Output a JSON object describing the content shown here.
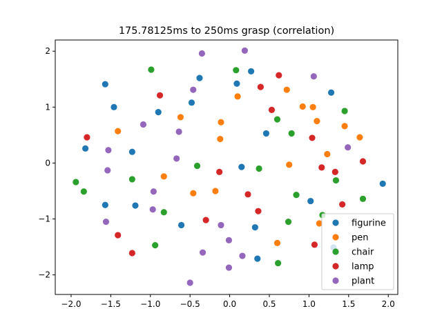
{
  "chart_data": {
    "type": "scatter",
    "title": "175.78125ms to 250ms grasp (correlation)",
    "xlabel": "",
    "ylabel": "",
    "xlim": [
      -2.2,
      2.12
    ],
    "ylim": [
      -2.35,
      2.2
    ],
    "xticks": [
      -2.0,
      -1.5,
      -1.0,
      -0.5,
      0.0,
      0.5,
      1.0,
      1.5,
      2.0
    ],
    "xtick_labels": [
      "−2.0",
      "−1.5",
      "−1.0",
      "−0.5",
      "0.0",
      "0.5",
      "1.0",
      "1.5",
      "2.0"
    ],
    "yticks": [
      -2,
      -1,
      0,
      1,
      2
    ],
    "ytick_labels": [
      "−2",
      "−1",
      "0",
      "1",
      "2"
    ],
    "grid": false,
    "legend_position": "bottom-right",
    "series": [
      {
        "name": "figurine",
        "color": "#1f77b4",
        "points": [
          [
            -1.57,
            1.41
          ],
          [
            -1.46,
            1.0
          ],
          [
            -0.38,
            1.52
          ],
          [
            0.27,
            1.64
          ],
          [
            0.09,
            1.42
          ],
          [
            1.28,
            1.26
          ],
          [
            -0.48,
            1.08
          ],
          [
            -0.9,
            0.91
          ],
          [
            0.46,
            0.53
          ],
          [
            -1.82,
            0.26
          ],
          [
            -1.23,
            0.2
          ],
          [
            0.15,
            -0.07
          ],
          [
            1.93,
            -0.37
          ],
          [
            -1.57,
            -0.75
          ],
          [
            -1.19,
            -0.76
          ],
          [
            1.02,
            -0.68
          ],
          [
            -0.61,
            -1.11
          ],
          [
            0.32,
            -1.15
          ],
          [
            1.31,
            -1.51
          ],
          [
            0.35,
            -1.71
          ]
        ]
      },
      {
        "name": "pen",
        "color": "#ff7f0e",
        "points": [
          [
            0.72,
            1.31
          ],
          [
            0.1,
            1.19
          ],
          [
            0.92,
            1.01
          ],
          [
            1.05,
            1.0
          ],
          [
            -0.62,
            0.82
          ],
          [
            -0.11,
            0.73
          ],
          [
            1.1,
            0.75
          ],
          [
            1.45,
            0.66
          ],
          [
            -1.41,
            0.57
          ],
          [
            1.64,
            0.46
          ],
          [
            -0.12,
            0.43
          ],
          [
            1.23,
            0.16
          ],
          [
            0.75,
            -0.03
          ],
          [
            -0.83,
            -0.24
          ],
          [
            -0.18,
            -0.5
          ],
          [
            -0.46,
            -0.54
          ],
          [
            1.13,
            -1.08
          ],
          [
            0.6,
            -1.43
          ]
        ]
      },
      {
        "name": "chair",
        "color": "#2ca02c",
        "points": [
          [
            -0.99,
            1.67
          ],
          [
            0.08,
            1.66
          ],
          [
            1.45,
            0.93
          ],
          [
            0.6,
            0.78
          ],
          [
            0.78,
            0.53
          ],
          [
            -0.41,
            -0.05
          ],
          [
            0.37,
            -0.1
          ],
          [
            -1.94,
            -0.34
          ],
          [
            -1.23,
            -0.29
          ],
          [
            1.34,
            -0.31
          ],
          [
            -1.84,
            -0.51
          ],
          [
            0.84,
            -0.57
          ],
          [
            1.68,
            -0.64
          ],
          [
            -0.83,
            -0.88
          ],
          [
            1.17,
            -0.93
          ],
          [
            0.74,
            -1.05
          ],
          [
            -0.94,
            -1.47
          ],
          [
            0.61,
            -1.79
          ]
        ]
      },
      {
        "name": "lamp",
        "color": "#d62728",
        "points": [
          [
            0.62,
            1.57
          ],
          [
            0.39,
            1.36
          ],
          [
            -0.88,
            1.21
          ],
          [
            0.53,
            0.95
          ],
          [
            -1.8,
            0.46
          ],
          [
            1.04,
            0.45
          ],
          [
            1.68,
            0.03
          ],
          [
            1.16,
            -0.08
          ],
          [
            1.33,
            -0.16
          ],
          [
            -0.13,
            -0.16
          ],
          [
            0.23,
            -0.56
          ],
          [
            1.42,
            -0.74
          ],
          [
            0.36,
            -0.86
          ],
          [
            -0.3,
            -1.02
          ],
          [
            -1.41,
            -1.29
          ],
          [
            -1.23,
            -1.61
          ],
          [
            1.07,
            -1.46
          ]
        ]
      },
      {
        "name": "plant",
        "color": "#9467bd",
        "points": [
          [
            0.19,
            2.01
          ],
          [
            -0.35,
            1.96
          ],
          [
            1.06,
            1.55
          ],
          [
            -0.46,
            1.31
          ],
          [
            -1.09,
            0.69
          ],
          [
            -0.64,
            0.56
          ],
          [
            1.49,
            0.28
          ],
          [
            -1.53,
            0.23
          ],
          [
            -0.67,
            0.08
          ],
          [
            -1.54,
            -0.13
          ],
          [
            -0.96,
            -0.51
          ],
          [
            -0.97,
            -0.83
          ],
          [
            -0.11,
            -1.11
          ],
          [
            -1.56,
            -1.05
          ],
          [
            -0.01,
            -1.38
          ],
          [
            -0.34,
            -1.6
          ],
          [
            0.16,
            -1.66
          ],
          [
            -0.01,
            -1.87
          ],
          [
            -0.5,
            -2.14
          ]
        ]
      }
    ]
  }
}
